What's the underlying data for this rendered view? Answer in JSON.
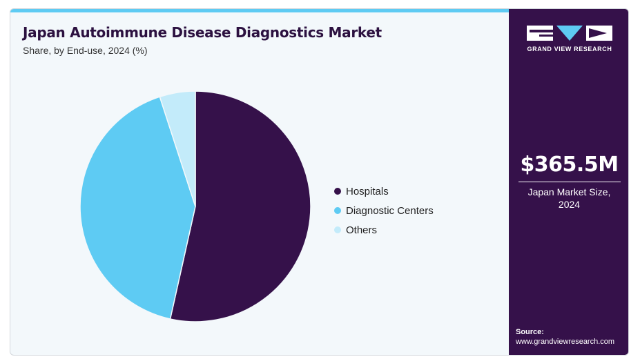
{
  "chart_data": {
    "type": "pie",
    "title": "Japan Autoimmune Disease Diagnostics Market",
    "subtitle": "Share, by End-use, 2024 (%)",
    "categories": [
      "Hospitals",
      "Diagnostic Centers",
      "Others"
    ],
    "values": [
      53.5,
      41.5,
      5.0
    ],
    "colors": [
      "#35114a",
      "#5ecbf3",
      "#c3ebfa"
    ],
    "legend_position": "right"
  },
  "sidebar": {
    "logo_text": "GRAND VIEW RESEARCH",
    "market_value": "$365.5M",
    "market_label_line1": "Japan Market Size,",
    "market_label_line2": "2024",
    "source_title": "Source:",
    "source_url": "www.grandviewresearch.com"
  },
  "colors": {
    "accent": "#5ecbf3",
    "sidebar_bg": "#35114a",
    "title": "#2c1140"
  }
}
